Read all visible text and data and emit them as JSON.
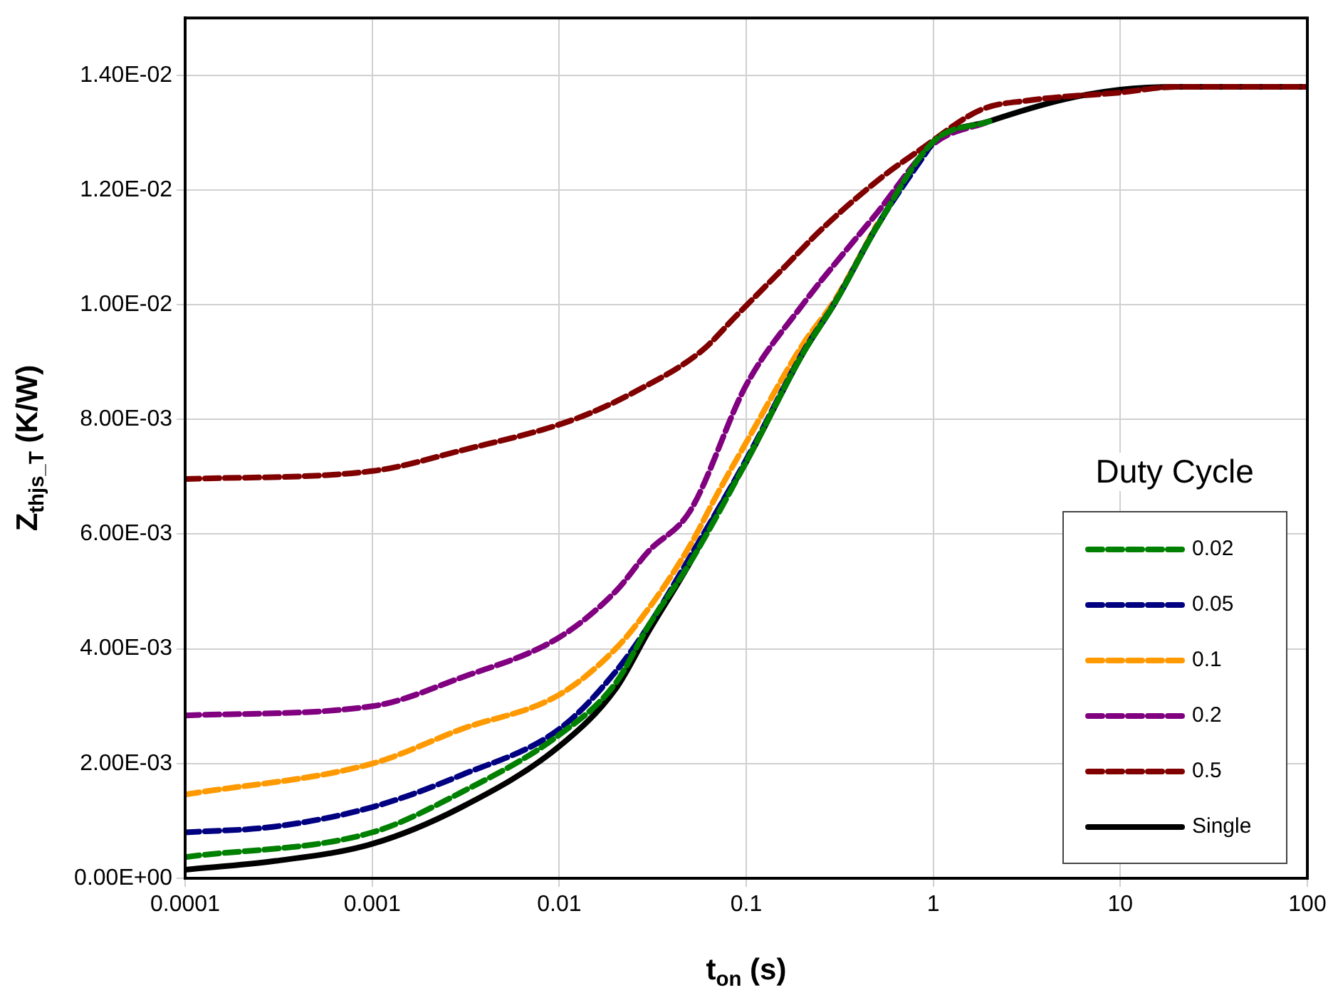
{
  "chart_data": {
    "type": "line",
    "xlabel": "t$_{on}$ (s)",
    "ylabel": "Z$_{thjs_T}$ (K/W)",
    "legend_title": "Duty Cycle",
    "log": "x",
    "grid": true,
    "legend": "bottom right",
    "xlim": [
      0.0001,
      100
    ],
    "xticks": [
      0.0001,
      0.001,
      0.01,
      0.1,
      1,
      10,
      100
    ],
    "ylim": [
      0,
      0.015
    ],
    "yticks": [
      {
        "value": 0,
        "label": "0.00E+00"
      },
      {
        "value": 0.002,
        "label": "2.00E-03"
      },
      {
        "value": 0.004,
        "label": "4.00E-03"
      },
      {
        "value": 0.006,
        "label": "6.00E-03"
      },
      {
        "value": 0.008,
        "label": "8.00E-03"
      },
      {
        "value": 0.01,
        "label": "1.00E-02"
      },
      {
        "value": 0.012,
        "label": "1.20E-02"
      },
      {
        "value": 0.014,
        "label": "1.40E-02"
      }
    ],
    "series": [
      {
        "name": "0.02",
        "color": "#008000",
        "line_style": "dashed",
        "x": [
          0.0001,
          0.001,
          0.003,
          0.01,
          0.02,
          0.03,
          0.05,
          0.1,
          0.2,
          0.3,
          0.5,
          1,
          2
        ],
        "values": [
          0.00037,
          0.0008,
          0.0015,
          0.0025,
          0.0034,
          0.0044,
          0.0055,
          0.00726,
          0.00914,
          0.01005,
          0.01136,
          0.01284,
          0.0132
        ]
      },
      {
        "name": "0.05",
        "color": "#000080",
        "line_style": "dashed",
        "x": [
          0.0001,
          0.0003,
          0.001,
          0.003,
          0.01,
          0.02,
          0.03,
          0.05,
          0.1,
          0.2,
          0.3,
          0.5,
          1
        ],
        "values": [
          0.0008,
          0.0009,
          0.00124,
          0.0018,
          0.0026,
          0.0036,
          0.0044,
          0.0056,
          0.0073,
          0.00916,
          0.01006,
          0.01137,
          0.01284
        ]
      },
      {
        "name": "0.1",
        "color": "#ff9900",
        "line_style": "dashed",
        "x": [
          0.0001,
          0.001,
          0.003,
          0.01,
          0.02,
          0.03,
          0.05,
          0.07,
          0.1,
          0.2,
          0.3,
          0.5
        ],
        "values": [
          0.00146,
          0.002,
          0.0026,
          0.0032,
          0.004,
          0.0047,
          0.0058,
          0.0067,
          0.0076,
          0.0093,
          0.0101,
          0.0114
        ]
      },
      {
        "name": "0.2",
        "color": "#800080",
        "line_style": "dashed",
        "x": [
          0.0001,
          0.001,
          0.003,
          0.01,
          0.02,
          0.03,
          0.05,
          0.1,
          0.2,
          0.5,
          1,
          2
        ],
        "values": [
          0.00284,
          0.003,
          0.0035,
          0.0042,
          0.005,
          0.0057,
          0.0064,
          0.0086,
          0.01,
          0.0116,
          0.0128,
          0.0132
        ]
      },
      {
        "name": "0.5",
        "color": "#800000",
        "line_style": "dashed",
        "x": [
          0.0001,
          0.001,
          0.003,
          0.012,
          0.026,
          0.058,
          0.088,
          0.165,
          0.25,
          0.52,
          0.85,
          1.8,
          3.2,
          10,
          20,
          100
        ],
        "values": [
          0.00696,
          0.0071,
          0.00746,
          0.008,
          0.0085,
          0.0092,
          0.0098,
          0.0107,
          0.0113,
          0.0122,
          0.0127,
          0.0134,
          0.01356,
          0.0137,
          0.0138,
          0.0138
        ]
      },
      {
        "name": "Single",
        "color": "#000000",
        "line_style": "solid",
        "x": [
          0.0001,
          0.0003,
          0.001,
          0.003,
          0.01,
          0.02,
          0.03,
          0.05,
          0.07,
          0.1,
          0.2,
          0.3,
          0.5,
          1,
          2,
          5,
          10,
          20,
          100
        ],
        "values": [
          0.00015,
          0.0003,
          0.0006,
          0.00124,
          0.0023,
          0.0033,
          0.0043,
          0.0055,
          0.0064,
          0.00726,
          0.00914,
          0.01005,
          0.01136,
          0.01284,
          0.0132,
          0.01358,
          0.01375,
          0.0138,
          0.0138
        ]
      }
    ]
  }
}
